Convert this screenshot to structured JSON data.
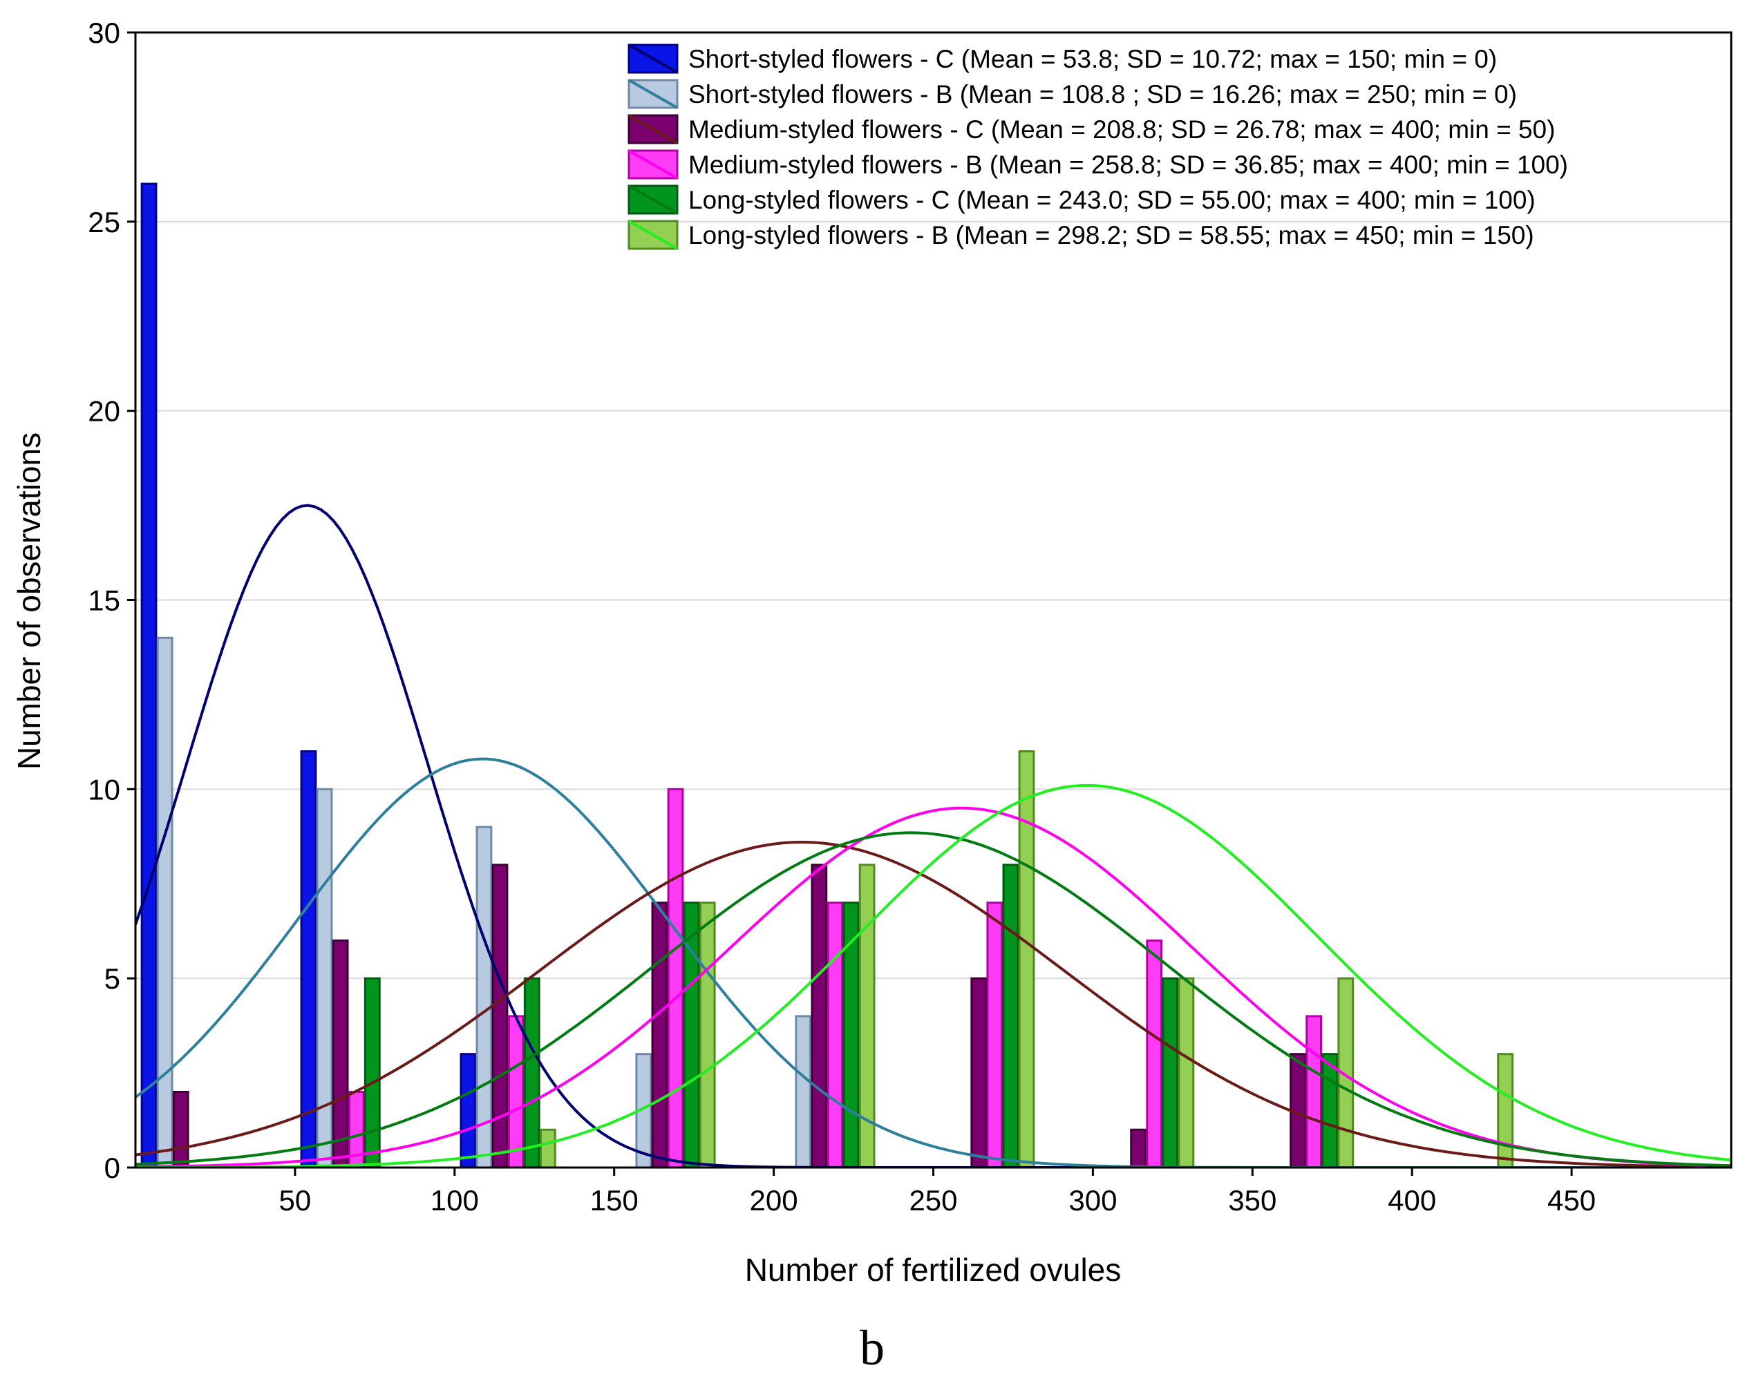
{
  "chart_data": {
    "type": "bar",
    "xlabel": "Number of fertilized ovules",
    "ylabel": "Number of observations",
    "panel_label": "b",
    "xlim": [
      0,
      500
    ],
    "ylim": [
      0,
      30
    ],
    "x_ticks": [
      50,
      100,
      150,
      200,
      250,
      300,
      350,
      400,
      450
    ],
    "y_ticks": [
      0,
      5,
      10,
      15,
      20,
      25,
      30
    ],
    "grid": "horizontal",
    "legend_position": "top-right",
    "bin_centers": [
      25,
      75,
      125,
      175,
      225,
      275,
      325,
      375,
      425
    ],
    "series": [
      {
        "name": "Short-styled flowers - C (Mean = 53.8; SD = 10.72; max = 150; min = 0)",
        "values": [
          26,
          11,
          3,
          0,
          0,
          0,
          0,
          0,
          0
        ],
        "fill": "#0a14e6",
        "stroke": "#00008b",
        "curve": {
          "mean": 53.8,
          "peak": 17.5,
          "sigma": 38,
          "color": "#00006e"
        }
      },
      {
        "name": "Short-styled flowers - B (Mean = 108.8 ; SD = 16.26; max = 250; min = 0)",
        "values": [
          14,
          10,
          9,
          3,
          4,
          0,
          0,
          0,
          0
        ],
        "fill": "#b8cadf",
        "stroke": "#6f8aa8",
        "curve": {
          "mean": 108.8,
          "peak": 10.8,
          "sigma": 58,
          "color": "#2e7f9e"
        }
      },
      {
        "name": "Medium-styled flowers - C (Mean = 208.8; SD = 26.78; max = 400; min = 50)",
        "values": [
          2,
          6,
          8,
          7,
          8,
          5,
          1,
          3,
          0
        ],
        "fill": "#7a006e",
        "stroke": "#3d0035",
        "curve": {
          "mean": 208.8,
          "peak": 8.6,
          "sigma": 82,
          "color": "#6b1a1a"
        }
      },
      {
        "name": "Medium-styled flowers - B (Mean = 258.8; SD = 36.85; max = 400; min = 100)",
        "values": [
          0,
          2,
          4,
          10,
          7,
          7,
          6,
          4,
          0
        ],
        "fill": "#ff3cf5",
        "stroke": "#b0009f",
        "curve": {
          "mean": 258.8,
          "peak": 9.5,
          "sigma": 73,
          "color": "#ff00ee"
        }
      },
      {
        "name": "Long-styled flowers - C (Mean = 243.0; SD = 55.00; max = 400; min = 100)",
        "values": [
          0,
          5,
          5,
          7,
          7,
          8,
          5,
          3,
          0
        ],
        "fill": "#00961e",
        "stroke": "#005a10",
        "curve": {
          "mean": 243.0,
          "peak": 8.85,
          "sigma": 80,
          "color": "#007a12"
        }
      },
      {
        "name": "Long-styled flowers - B (Mean = 298.2; SD = 58.55; max = 450; min = 150)",
        "values": [
          0,
          0,
          1,
          7,
          8,
          11,
          5,
          5,
          3
        ],
        "fill": "#92cf52",
        "stroke": "#4f8a20",
        "curve": {
          "mean": 298.2,
          "peak": 10.1,
          "sigma": 72,
          "color": "#22ee22"
        }
      }
    ]
  }
}
